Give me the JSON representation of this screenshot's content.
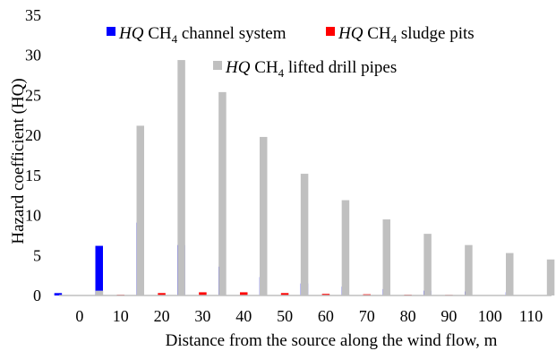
{
  "chart_data": {
    "type": "bar",
    "xlabel": "Distance from the source along the wind flow, m",
    "ylabel": "Hazard coefficient (HQ)",
    "ylim": [
      0,
      35
    ],
    "yticks": [
      0,
      5,
      10,
      15,
      20,
      25,
      30,
      35
    ],
    "grid": false,
    "legend_position": "top",
    "categories": [
      "0",
      "10",
      "20",
      "30",
      "40",
      "50",
      "60",
      "70",
      "80",
      "90",
      "100",
      "110"
    ],
    "series": [
      {
        "name": "HQ CH4 channel system",
        "legend": {
          "italic": "HQ",
          "base": " CH",
          "sub": "4",
          "rest": " channel system"
        },
        "color": "#0000ff",
        "values": [
          0.3,
          6.2,
          9.1,
          6.3,
          3.6,
          2.3,
          1.5,
          1.1,
          0.8,
          0.6,
          0.5,
          0.4
        ]
      },
      {
        "name": "HQ CH4 sludge pits",
        "legend": {
          "italic": "HQ",
          "base": " CH",
          "sub": "4",
          "rest": " sludge pits"
        },
        "color": "#ff0000",
        "values": [
          0.0,
          0.1,
          0.3,
          0.4,
          0.4,
          0.3,
          0.2,
          0.15,
          0.1,
          0.08,
          0.05,
          0.04
        ]
      },
      {
        "name": "HQ CH4 lifted drill pipes",
        "legend": {
          "italic": "HQ",
          "base": " CH",
          "sub": "4",
          "rest": " lifted drill pipes"
        },
        "color": "#c0c0c0",
        "values": [
          0.6,
          21.2,
          29.4,
          25.4,
          19.8,
          15.2,
          11.9,
          9.5,
          7.7,
          6.3,
          5.3,
          4.5
        ]
      }
    ]
  }
}
